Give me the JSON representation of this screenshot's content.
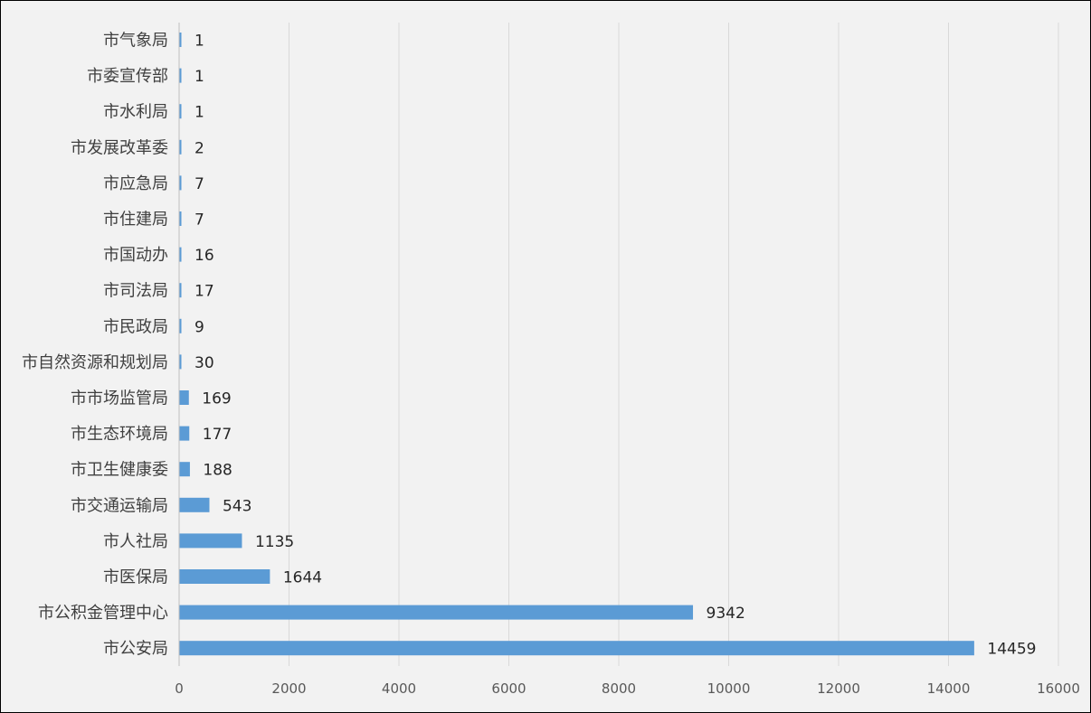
{
  "chart_data": {
    "type": "bar",
    "orientation": "horizontal",
    "title": "",
    "xlabel": "",
    "ylabel": "",
    "categories": [
      "市气象局",
      "市委宣传部",
      "市水利局",
      "市发展改革委",
      "市应急局",
      "市住建局",
      "市国动办",
      "市司法局",
      "市民政局",
      "市自然资源和规划局",
      "市市场监管局",
      "市生态环境局",
      "市卫生健康委",
      "市交通运输局",
      "市人社局",
      "市医保局",
      "市公积金管理中心",
      "市公安局"
    ],
    "values": [
      1,
      1,
      1,
      2,
      7,
      7,
      16,
      17,
      9,
      30,
      169,
      177,
      188,
      543,
      1135,
      1644,
      9342,
      14459
    ],
    "xlim": [
      0,
      16000
    ],
    "xticks": [
      0,
      2000,
      4000,
      6000,
      8000,
      10000,
      12000,
      14000,
      16000
    ],
    "grid": true,
    "legend": "none",
    "colors": {
      "bar": "#5b9bd5",
      "background": "#f2f2f2",
      "grid": "#d9d9d9"
    }
  }
}
